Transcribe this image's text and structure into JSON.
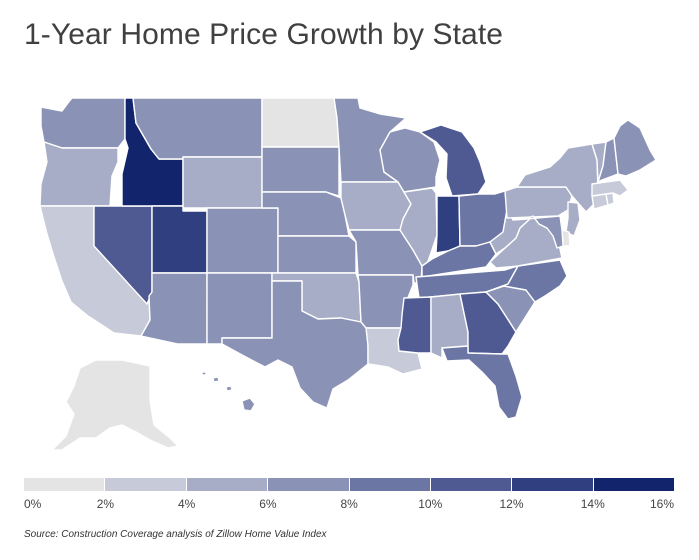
{
  "title": "1-Year Home Price Growth by State",
  "source": "Source: Construction Coverage analysis of Zillow Home Value Index",
  "chart_data": {
    "type": "choropleth",
    "legend": {
      "bins": [
        {
          "from": 0,
          "to": 2,
          "color": "#e4e4e4"
        },
        {
          "from": 2,
          "to": 4,
          "color": "#c6cad9"
        },
        {
          "from": 4,
          "to": 6,
          "color": "#a7adc6"
        },
        {
          "from": 6,
          "to": 8,
          "color": "#8a92b5"
        },
        {
          "from": 8,
          "to": 10,
          "color": "#6b76a4"
        },
        {
          "from": 10,
          "to": 12,
          "color": "#4e5a91"
        },
        {
          "from": 12,
          "to": 14,
          "color": "#2f3f7f"
        },
        {
          "from": 14,
          "to": 16,
          "color": "#12246b"
        }
      ],
      "tick_labels": [
        "0%",
        "2%",
        "4%",
        "6%",
        "8%",
        "10%",
        "12%",
        "14%",
        "16%"
      ]
    },
    "states": [
      {
        "code": "WA",
        "bin": 3
      },
      {
        "code": "OR",
        "bin": 2
      },
      {
        "code": "CA",
        "bin": 1
      },
      {
        "code": "NV",
        "bin": 5
      },
      {
        "code": "ID",
        "bin": 7
      },
      {
        "code": "MT",
        "bin": 3
      },
      {
        "code": "WY",
        "bin": 2
      },
      {
        "code": "UT",
        "bin": 6
      },
      {
        "code": "AZ",
        "bin": 3
      },
      {
        "code": "CO",
        "bin": 3
      },
      {
        "code": "NM",
        "bin": 3
      },
      {
        "code": "ND",
        "bin": 0
      },
      {
        "code": "SD",
        "bin": 3
      },
      {
        "code": "NE",
        "bin": 3
      },
      {
        "code": "KS",
        "bin": 3
      },
      {
        "code": "OK",
        "bin": 2
      },
      {
        "code": "TX",
        "bin": 3
      },
      {
        "code": "MN",
        "bin": 3
      },
      {
        "code": "IA",
        "bin": 2
      },
      {
        "code": "MO",
        "bin": 3
      },
      {
        "code": "AR",
        "bin": 3
      },
      {
        "code": "LA",
        "bin": 1
      },
      {
        "code": "WI",
        "bin": 3
      },
      {
        "code": "IL",
        "bin": 2
      },
      {
        "code": "MI",
        "bin": 5
      },
      {
        "code": "IN",
        "bin": 6
      },
      {
        "code": "OH",
        "bin": 4
      },
      {
        "code": "KY",
        "bin": 4
      },
      {
        "code": "TN",
        "bin": 4
      },
      {
        "code": "MS",
        "bin": 5
      },
      {
        "code": "AL",
        "bin": 2
      },
      {
        "code": "GA",
        "bin": 5
      },
      {
        "code": "FL",
        "bin": 4
      },
      {
        "code": "SC",
        "bin": 3
      },
      {
        "code": "NC",
        "bin": 4
      },
      {
        "code": "VA",
        "bin": 2
      },
      {
        "code": "WV",
        "bin": 2
      },
      {
        "code": "PA",
        "bin": 2
      },
      {
        "code": "NY",
        "bin": 2
      },
      {
        "code": "ME",
        "bin": 3
      },
      {
        "code": "VT",
        "bin": 2
      },
      {
        "code": "NH",
        "bin": 3
      },
      {
        "code": "MA",
        "bin": 1
      },
      {
        "code": "CT",
        "bin": 1
      },
      {
        "code": "RI",
        "bin": 1
      },
      {
        "code": "NJ",
        "bin": 2
      },
      {
        "code": "DE",
        "bin": 0
      },
      {
        "code": "MD",
        "bin": 3
      },
      {
        "code": "AK",
        "bin": 0
      },
      {
        "code": "HI",
        "bin": 3
      }
    ]
  }
}
